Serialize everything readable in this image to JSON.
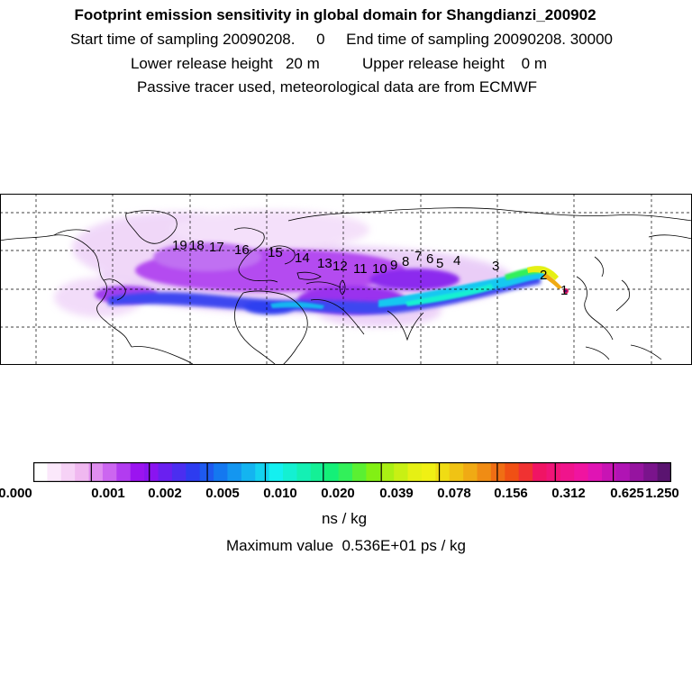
{
  "header": {
    "title": "Footprint emission sensitivity in global domain for Shangdianzi_200902",
    "line2": "Start time of sampling 20090208.     0     End time of sampling 20090208. 30000",
    "line3": "Lower release height   20 m          Upper release height    0 m",
    "line4": "Passive tracer used, meteorological data are from ECMWF"
  },
  "map": {
    "trajectory_labels": [
      "19",
      "18",
      "17",
      "16",
      "15",
      "14",
      "13",
      "12",
      "11",
      "10",
      "9",
      "8",
      "7",
      "6",
      "5",
      "4",
      "3",
      "2",
      "1"
    ]
  },
  "colorbar": {
    "tick_labels": [
      "0.000",
      "0.001",
      "0.002",
      "0.005",
      "0.010",
      "0.020",
      "0.039",
      "0.078",
      "0.156",
      "0.312",
      "0.625",
      "1.250"
    ],
    "colors": [
      "#ffffff",
      "#fbe8fb",
      "#f6d2f6",
      "#f0b8f0",
      "#e08ef0",
      "#cc66f0",
      "#b23cf0",
      "#9b14f0",
      "#8a14f0",
      "#6a20f0",
      "#4b2ef0",
      "#2d3cf0",
      "#1e5af0",
      "#1478f0",
      "#1496f0",
      "#14b4f0",
      "#14d2f0",
      "#14f0f0",
      "#14f0d2",
      "#14f0b4",
      "#14f096",
      "#14f078",
      "#32f05a",
      "#5af032",
      "#82f014",
      "#aaf014",
      "#c8f014",
      "#e6f014",
      "#f0f014",
      "#f0dc14",
      "#f0c314",
      "#f0aa14",
      "#f08c14",
      "#f06e14",
      "#f05014",
      "#f03232",
      "#f01464",
      "#f01478",
      "#f0148c",
      "#f014a0",
      "#e014b4",
      "#c814b4",
      "#b014b4",
      "#9614a0",
      "#7a148c",
      "#5a1470"
    ],
    "unit": "ns / kg",
    "max_value": "Maximum value  0.536E+01 ps / kg"
  }
}
